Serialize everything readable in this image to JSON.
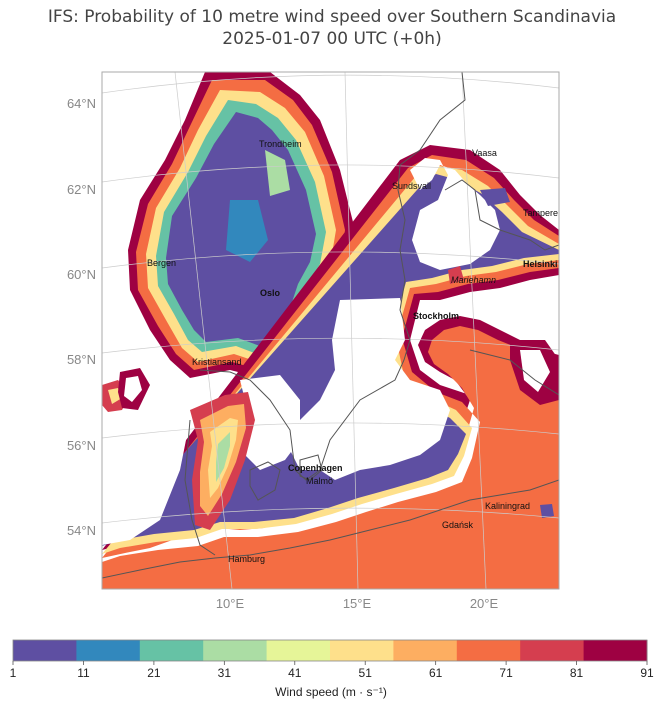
{
  "title": {
    "line1": "IFS: Probability of 10 metre wind speed over Southern Scandinavia",
    "line2": "2025-01-07 00 UTC (+0h)"
  },
  "map": {
    "lat_labels": [
      "64°N",
      "62°N",
      "60°N",
      "58°N",
      "56°N",
      "54°N"
    ],
    "lon_labels": [
      "10°E",
      "15°E",
      "20°E"
    ],
    "cities": [
      {
        "key": "trondheim",
        "name": "Trondheim",
        "style": "normal"
      },
      {
        "key": "vaasa",
        "name": "Vaasa",
        "style": "normal"
      },
      {
        "key": "sundsvall",
        "name": "Sundsvall",
        "style": "normal"
      },
      {
        "key": "tampere",
        "name": "Tampere",
        "style": "normal"
      },
      {
        "key": "bergen",
        "name": "Bergen",
        "style": "normal"
      },
      {
        "key": "helsinki",
        "name": "Helsinki",
        "style": "bold"
      },
      {
        "key": "mariehamn",
        "name": "Mariehamn",
        "style": "italic"
      },
      {
        "key": "oslo",
        "name": "Oslo",
        "style": "bold"
      },
      {
        "key": "stockholm",
        "name": "Stockholm",
        "style": "bold"
      },
      {
        "key": "kristiansand",
        "name": "Kristiansand",
        "style": "normal"
      },
      {
        "key": "copenhagen",
        "name": "Copenhagen",
        "style": "bold"
      },
      {
        "key": "malmo",
        "name": "Malmö",
        "style": "normal"
      },
      {
        "key": "kaliningrad",
        "name": "Kaliningrad",
        "style": "normal"
      },
      {
        "key": "gdansk",
        "name": "Gdańsk",
        "style": "normal"
      },
      {
        "key": "hamburg",
        "name": "Hamburg",
        "style": "normal"
      }
    ]
  },
  "colorbar": {
    "label": "Wind speed (m · s⁻¹)",
    "ticks": [
      "1",
      "11",
      "21",
      "31",
      "41",
      "51",
      "61",
      "71",
      "81",
      "91"
    ],
    "colors": [
      "#5e4fa2",
      "#3288bd",
      "#66c2a5",
      "#abdda4",
      "#e6f598",
      "#fee08b",
      "#fdae61",
      "#f46d43",
      "#d53e4f",
      "#9e0142"
    ]
  }
}
